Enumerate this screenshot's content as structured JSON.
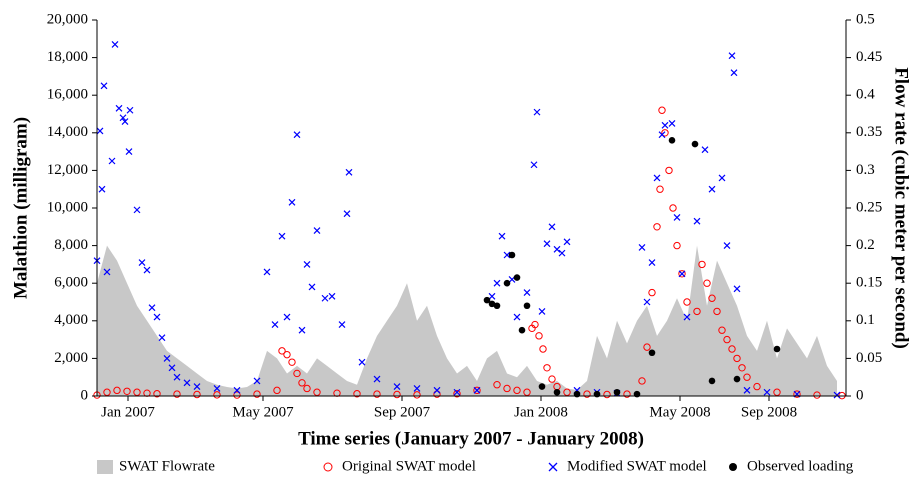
{
  "chart_data": {
    "type": "scatter",
    "xlabel": "Time series (January 2007 - January 2008)",
    "ylabel": "Malathion (milligram)",
    "y2label": "Flow rate (cubic meter per second)",
    "xlim": [
      0,
      749
    ],
    "xticks": [
      {
        "value": 31,
        "label": "Jan 2007"
      },
      {
        "value": 166,
        "label": "May 2007"
      },
      {
        "value": 305,
        "label": "Sep 2007"
      },
      {
        "value": 444,
        "label": "Jan 2008"
      },
      {
        "value": 583,
        "label": "May 2008"
      },
      {
        "value": 672,
        "label": "Sep 2008"
      }
    ],
    "ylim": [
      0,
      20000
    ],
    "yticks": [
      0,
      {
        "value": 2000,
        "label": "2,000"
      },
      {
        "value": 4000,
        "label": "4,000"
      },
      {
        "value": 6000,
        "label": "6,000"
      },
      {
        "value": 8000,
        "label": "8,000"
      },
      {
        "value": 10000,
        "label": "10,000"
      },
      {
        "value": 12000,
        "label": "12,000"
      },
      {
        "value": 14000,
        "label": "14,000"
      },
      {
        "value": 16000,
        "label": "16,000"
      },
      {
        "value": 18000,
        "label": "18,000"
      },
      {
        "value": 20000,
        "label": "20,000"
      }
    ],
    "y2lim": [
      0,
      0.5
    ],
    "y2ticks": [
      0,
      0.05,
      0.1,
      0.15,
      0.2,
      0.25,
      0.3,
      0.35,
      0.4,
      0.45,
      0.5
    ],
    "legend": "bottom",
    "series": [
      {
        "name": "SWAT Flowrate",
        "marker": "area",
        "axis": "y2",
        "color": "#c8c8c8",
        "x": [
          0,
          10,
          20,
          30,
          40,
          50,
          60,
          70,
          80,
          90,
          100,
          110,
          120,
          130,
          140,
          150,
          160,
          170,
          180,
          190,
          200,
          210,
          220,
          230,
          240,
          250,
          260,
          270,
          280,
          290,
          300,
          310,
          320,
          330,
          340,
          350,
          360,
          370,
          380,
          390,
          400,
          410,
          420,
          430,
          440,
          450,
          460,
          470,
          480,
          490,
          500,
          510,
          520,
          530,
          540,
          550,
          560,
          570,
          580,
          590,
          600,
          610,
          620,
          630,
          640,
          650,
          660,
          670,
          680,
          690,
          700,
          710,
          720,
          730,
          740
        ],
        "values": [
          0.15,
          0.2,
          0.18,
          0.15,
          0.12,
          0.1,
          0.08,
          0.06,
          0.05,
          0.04,
          0.03,
          0.02,
          0.015,
          0.012,
          0.01,
          0.012,
          0.02,
          0.06,
          0.05,
          0.03,
          0.04,
          0.03,
          0.05,
          0.04,
          0.03,
          0.02,
          0.015,
          0.05,
          0.08,
          0.1,
          0.12,
          0.15,
          0.1,
          0.12,
          0.08,
          0.05,
          0.03,
          0.04,
          0.02,
          0.05,
          0.06,
          0.03,
          0.025,
          0.04,
          0.02,
          0.015,
          0.02,
          0.01,
          0.008,
          0.02,
          0.08,
          0.05,
          0.1,
          0.07,
          0.1,
          0.12,
          0.08,
          0.1,
          0.13,
          0.1,
          0.2,
          0.12,
          0.18,
          0.15,
          0.12,
          0.08,
          0.06,
          0.1,
          0.05,
          0.09,
          0.07,
          0.05,
          0.08,
          0.04,
          0.02
        ]
      },
      {
        "name": "Original SWAT model",
        "marker": "circle",
        "color": "#ff0000",
        "x": [
          0,
          10,
          20,
          30,
          40,
          50,
          60,
          80,
          100,
          120,
          140,
          160,
          180,
          185,
          190,
          195,
          200,
          205,
          210,
          220,
          240,
          260,
          280,
          300,
          320,
          340,
          360,
          380,
          400,
          410,
          420,
          430,
          435,
          438,
          442,
          446,
          450,
          455,
          460,
          470,
          490,
          510,
          530,
          545,
          550,
          555,
          560,
          563,
          565,
          568,
          572,
          576,
          580,
          585,
          590,
          600,
          605,
          610,
          615,
          620,
          625,
          630,
          635,
          640,
          645,
          650,
          660,
          680,
          700,
          720,
          745
        ],
        "values": [
          50,
          200,
          300,
          250,
          200,
          150,
          120,
          100,
          80,
          60,
          50,
          100,
          300,
          2400,
          2200,
          1800,
          1200,
          700,
          400,
          200,
          150,
          120,
          100,
          80,
          60,
          100,
          120,
          300,
          600,
          400,
          300,
          200,
          3600,
          3800,
          3200,
          2500,
          1500,
          900,
          500,
          200,
          100,
          80,
          100,
          800,
          2600,
          5500,
          9000,
          11000,
          15200,
          14000,
          12000,
          10000,
          8000,
          6500,
          5000,
          4500,
          7000,
          6000,
          5200,
          4500,
          3500,
          3000,
          2500,
          2000,
          1500,
          1000,
          500,
          200,
          100,
          50,
          20
        ]
      },
      {
        "name": "Modified SWAT model",
        "marker": "cross",
        "color": "#0000ff",
        "x": [
          0,
          3,
          5,
          7,
          10,
          15,
          18,
          22,
          26,
          28,
          32,
          33,
          40,
          45,
          50,
          55,
          60,
          65,
          70,
          75,
          80,
          90,
          100,
          120,
          140,
          160,
          170,
          178,
          185,
          190,
          195,
          200,
          205,
          210,
          215,
          220,
          228,
          235,
          245,
          250,
          252,
          265,
          280,
          300,
          320,
          340,
          360,
          380,
          395,
          400,
          405,
          410,
          415,
          420,
          430,
          437,
          440,
          445,
          450,
          455,
          460,
          465,
          470,
          480,
          500,
          520,
          545,
          550,
          555,
          560,
          565,
          568,
          575,
          580,
          585,
          590,
          600,
          608,
          615,
          625,
          630,
          635,
          637,
          640,
          650,
          670,
          700,
          740
        ],
        "values": [
          7200,
          14100,
          11000,
          16500,
          6600,
          12500,
          18700,
          15300,
          14800,
          14600,
          13000,
          15200,
          9900,
          7100,
          6700,
          4700,
          4200,
          3100,
          2000,
          1500,
          1000,
          700,
          500,
          400,
          300,
          800,
          6600,
          3800,
          8500,
          4200,
          10300,
          13900,
          3500,
          7000,
          5800,
          8800,
          5200,
          5300,
          3800,
          9700,
          11900,
          1800,
          900,
          500,
          400,
          300,
          200,
          300,
          5300,
          6000,
          8500,
          7500,
          6200,
          4200,
          5500,
          12300,
          15100,
          4500,
          8100,
          9000,
          7800,
          7600,
          8200,
          300,
          200,
          150,
          7900,
          5000,
          7100,
          11600,
          13900,
          14400,
          14500,
          9500,
          6500,
          4200,
          9300,
          13100,
          11000,
          11600,
          8000,
          18100,
          17200,
          5700,
          300,
          200,
          100,
          50
        ]
      },
      {
        "name": "Observed loading",
        "marker": "dot",
        "color": "#000000",
        "x": [
          390,
          395,
          400,
          410,
          415,
          420,
          425,
          430,
          445,
          460,
          480,
          500,
          520,
          540,
          555,
          575,
          598,
          615,
          640,
          680
        ],
        "values": [
          5100,
          4900,
          4800,
          6000,
          7500,
          6300,
          3500,
          4800,
          500,
          200,
          100,
          100,
          200,
          100,
          2300,
          13600,
          13400,
          800,
          900,
          2500
        ]
      }
    ]
  }
}
